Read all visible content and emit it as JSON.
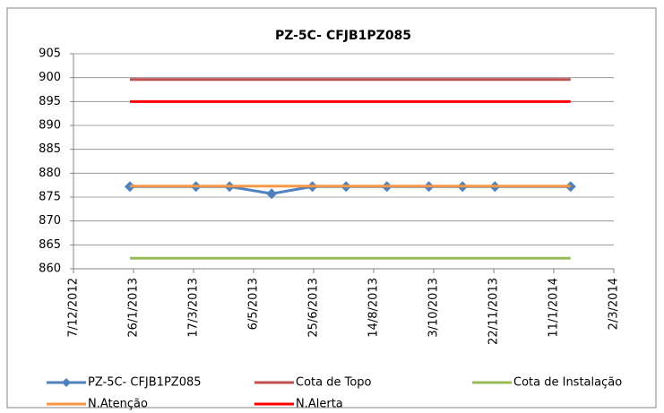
{
  "chart_data": {
    "type": "line",
    "title": "PZ-5C- CFJB1PZ085",
    "xlim": [
      "7/12/2012",
      "2/3/2014"
    ],
    "xticks": [
      "7/12/2012",
      "26/1/2013",
      "17/3/2013",
      "6/5/2013",
      "25/6/2013",
      "14/8/2013",
      "3/10/2013",
      "22/11/2013",
      "11/1/2014",
      "2/3/2014"
    ],
    "ylim": [
      860,
      905
    ],
    "yticks": [
      860,
      865,
      870,
      875,
      880,
      885,
      890,
      895,
      900,
      905
    ],
    "grid": true,
    "legend": "bottom",
    "series": [
      {
        "name": "PZ-5C- CFJB1PZ085",
        "color": "#4f81bd",
        "marker": "diamond",
        "x": [
          "23/1/2013",
          "19/3/2013",
          "16/4/2013",
          "21/5/2013",
          "24/6/2013",
          "22/7/2013",
          "25/8/2013",
          "29/9/2013",
          "27/10/2013",
          "23/11/2013",
          "25/1/2014"
        ],
        "values": [
          877.2,
          877.2,
          877.2,
          875.7,
          877.2,
          877.2,
          877.2,
          877.2,
          877.2,
          877.2,
          877.2
        ]
      },
      {
        "name": "Cota de Topo",
        "color": "#c0504d",
        "x": [
          "23/1/2013",
          "25/1/2014"
        ],
        "values": [
          899.6,
          899.6
        ]
      },
      {
        "name": "Cota de Instalação",
        "color": "#9bbb59",
        "x": [
          "23/1/2013",
          "25/1/2014"
        ],
        "values": [
          862.2,
          862.2
        ]
      },
      {
        "name": "N.Atenção",
        "color": "#f79646",
        "x": [
          "23/1/2013",
          "25/1/2014"
        ],
        "values": [
          877.3,
          877.3
        ]
      },
      {
        "name": "N.Alerta",
        "color": "#ff0000",
        "x": [
          "23/1/2013",
          "25/1/2014"
        ],
        "values": [
          895,
          895
        ]
      }
    ]
  }
}
